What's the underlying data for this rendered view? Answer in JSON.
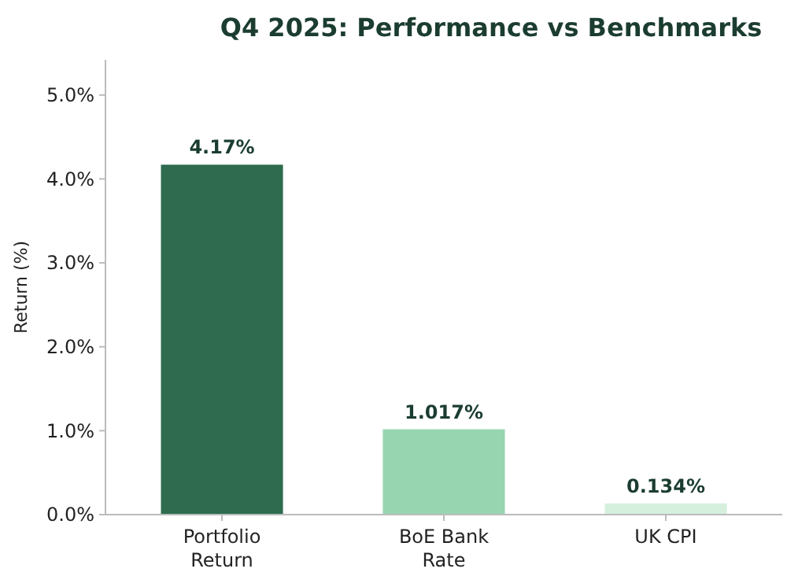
{
  "chart_data": {
    "type": "bar",
    "title": "Q4 2025: Performance vs Benchmarks",
    "ylabel": "Return (%)",
    "categories": [
      "Portfolio\nReturn",
      "BoE Bank\nRate",
      "UK CPI"
    ],
    "values": [
      4.17,
      1.017,
      0.134
    ],
    "colors": [
      "#2e6b4f",
      "#96d5b0",
      "#d5f0dc"
    ],
    "value_labels": [
      "4.17%",
      "1.017%",
      "0.134%"
    ],
    "ylim": [
      0,
      5.42
    ],
    "yticks": [
      {
        "value": 0,
        "label": "0.0%"
      },
      {
        "value": 1,
        "label": "1.0%"
      },
      {
        "value": 2,
        "label": "2.0%"
      },
      {
        "value": 3,
        "label": "3.0%"
      },
      {
        "value": 4,
        "label": "4.0%"
      },
      {
        "value": 5,
        "label": "5.0%"
      }
    ],
    "grid": false
  }
}
